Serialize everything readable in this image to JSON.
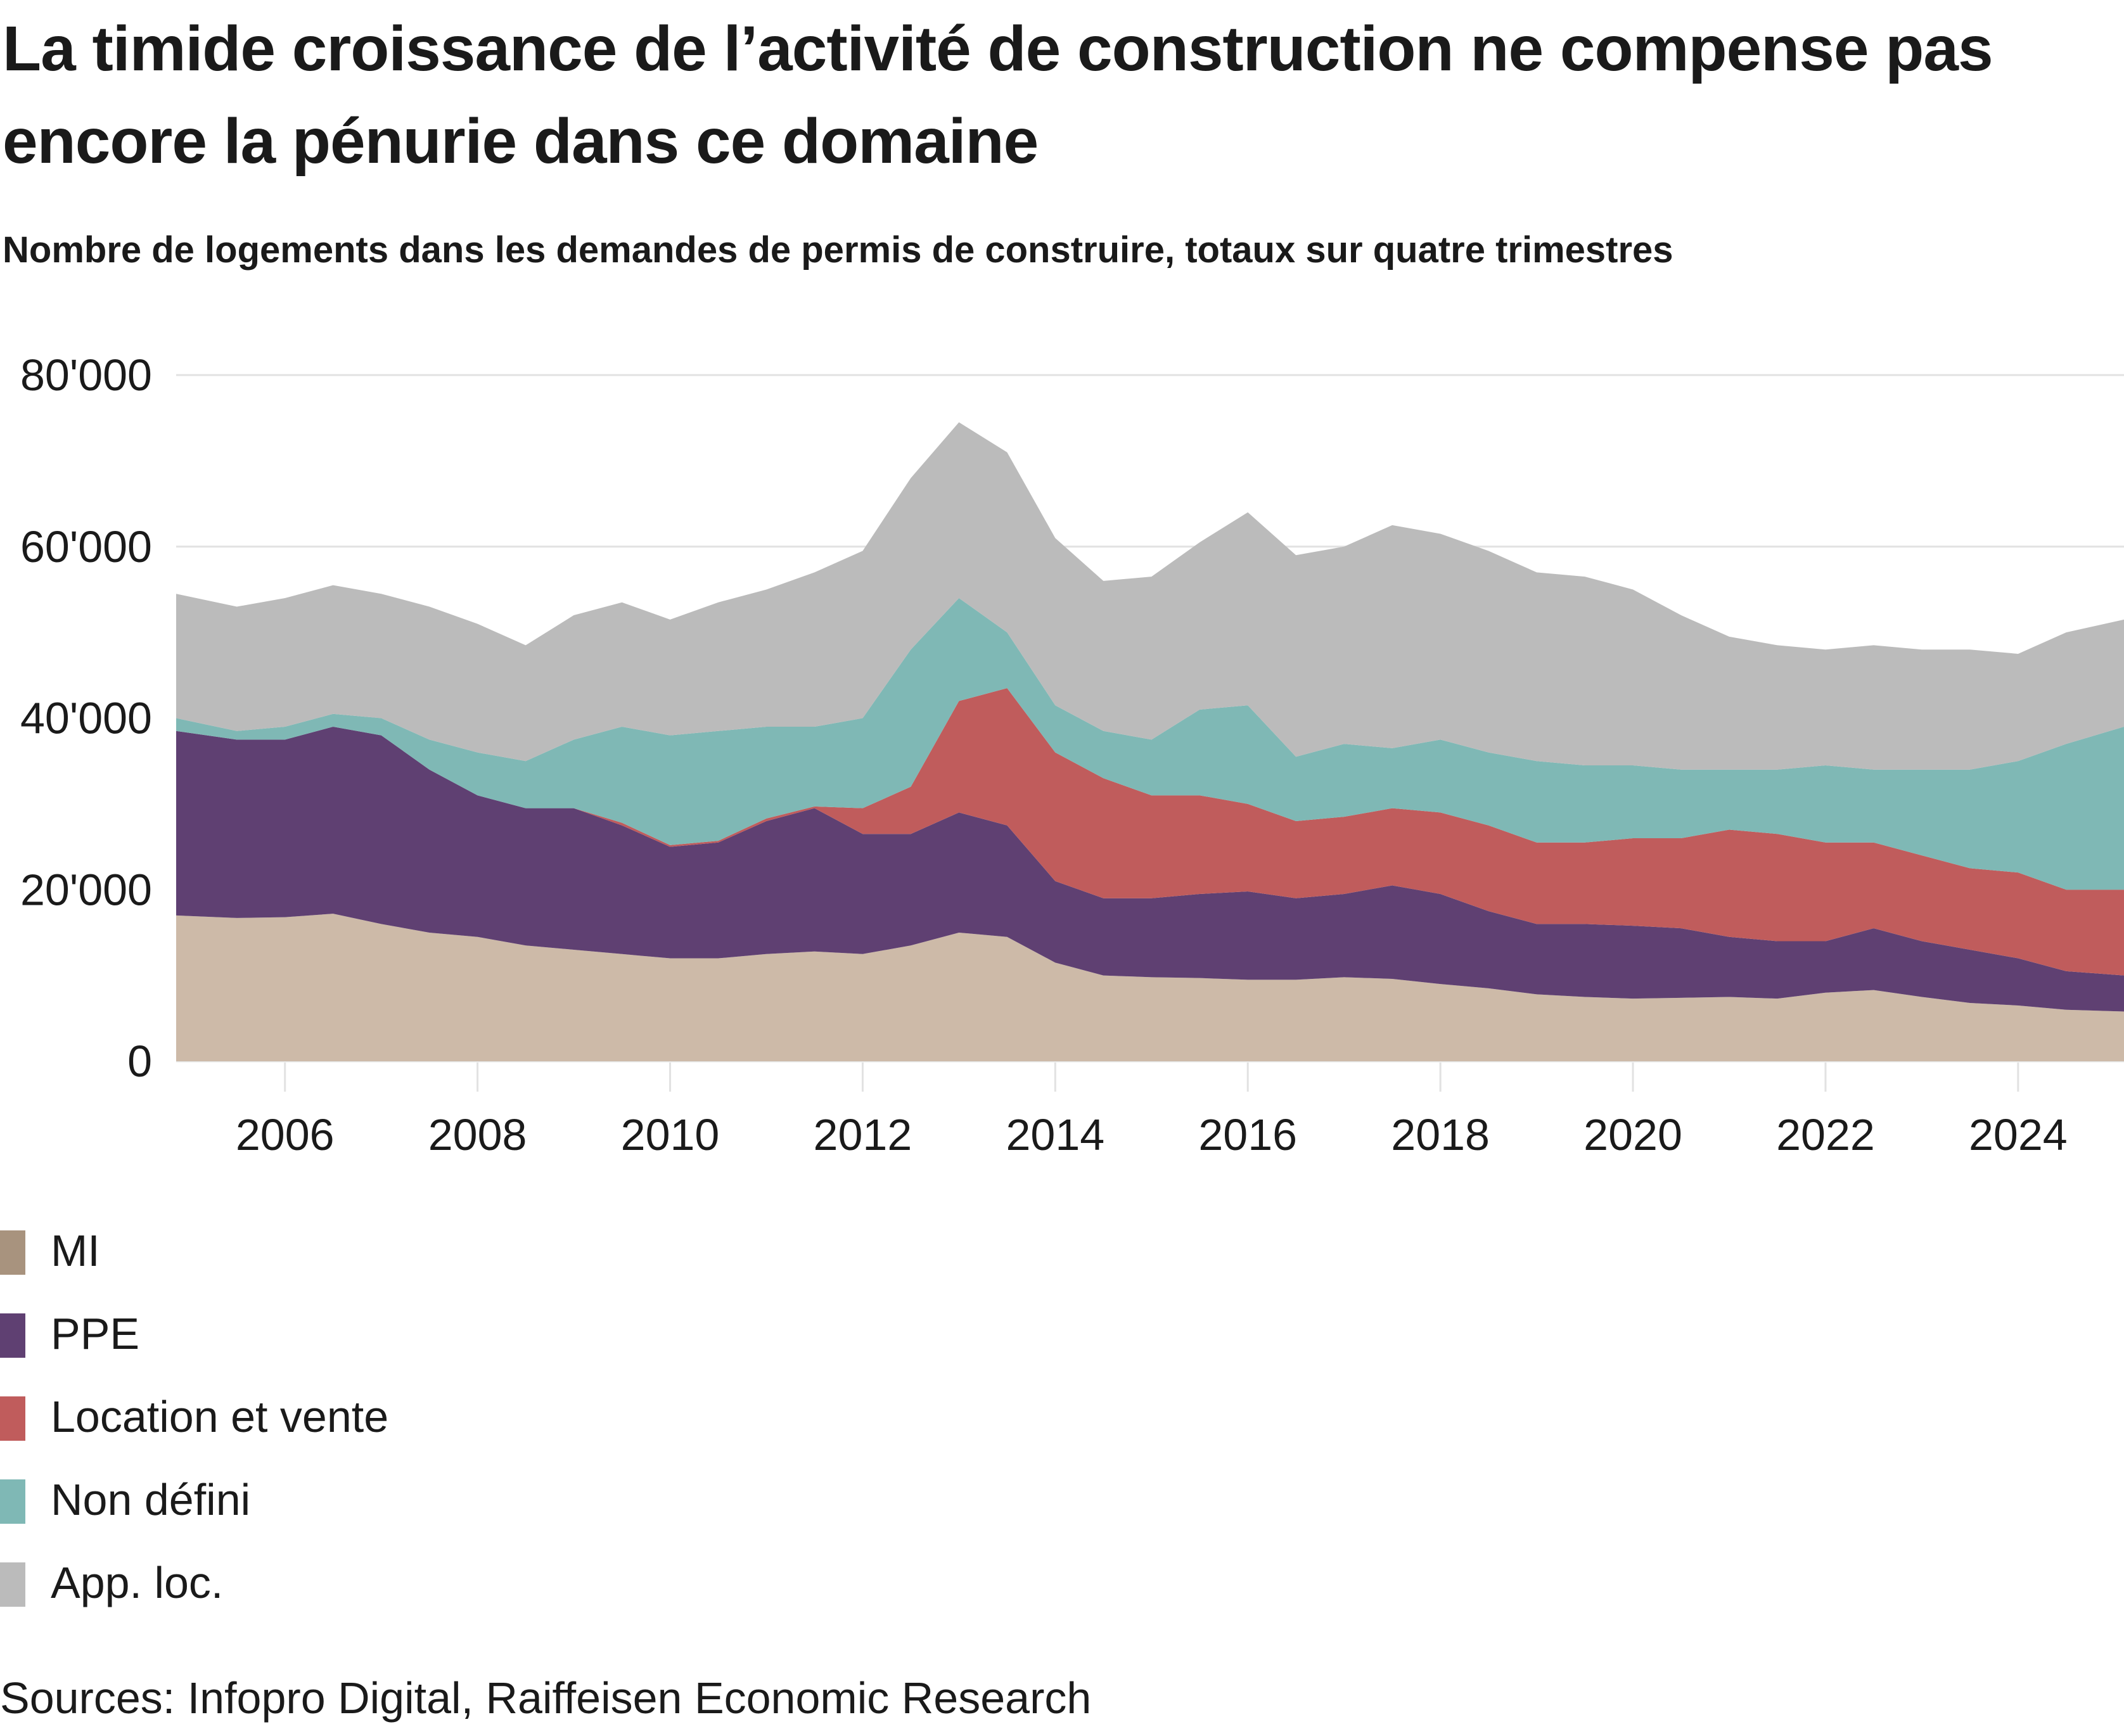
{
  "title": "La timide croissance de l’activité de construction ne compense pas encore la pénurie dans ce domaine",
  "subtitle": "Nombre de logements dans les demandes de permis de construire, totaux sur quatre trimestres",
  "source": "Sources: Infopro Digital, Raiffeisen Economic Research",
  "chart_data": {
    "type": "area",
    "stacked": true,
    "title": "La timide croissance de l’activité de construction ne compense pas encore la pénurie dans ce domaine",
    "subtitle": "Nombre de logements dans les demandes de permis de construire, totaux sur quatre trimestres",
    "xlabel": "",
    "ylabel": "",
    "xlim": [
      2004.87,
      2025.1
    ],
    "ylim": [
      0,
      80000
    ],
    "yticks": [
      0,
      20000,
      40000,
      60000,
      80000
    ],
    "ytick_labels": [
      "0",
      "20'000",
      "40'000",
      "60'000",
      "80'000"
    ],
    "xticks": [
      2006,
      2008,
      2010,
      2012,
      2014,
      2016,
      2018,
      2020,
      2022,
      2024
    ],
    "xtick_labels": [
      "2006",
      "2008",
      "2010",
      "2012",
      "2014",
      "2016",
      "2018",
      "2020",
      "2022",
      "2024"
    ],
    "grid": "horizontal",
    "legend_position": "bottom-left",
    "x": [
      2005.0,
      2005.5,
      2006.0,
      2006.5,
      2007.0,
      2007.5,
      2008.0,
      2008.5,
      2009.0,
      2009.5,
      2010.0,
      2010.5,
      2011.0,
      2011.5,
      2012.0,
      2012.5,
      2013.0,
      2013.5,
      2014.0,
      2014.5,
      2015.0,
      2015.5,
      2016.0,
      2016.5,
      2017.0,
      2017.5,
      2018.0,
      2018.5,
      2019.0,
      2019.5,
      2020.0,
      2020.5,
      2021.0,
      2021.5,
      2022.0,
      2022.5,
      2023.0,
      2023.5,
      2024.0,
      2024.5,
      2025.0
    ],
    "series": [
      {
        "name": "MI",
        "color": "#cdbaa8",
        "legend_color": "#a8937e",
        "values": [
          17000,
          16700,
          16800,
          17200,
          16000,
          15000,
          14500,
          13500,
          13000,
          12500,
          12000,
          12000,
          12500,
          12800,
          12500,
          13500,
          15000,
          14500,
          11500,
          10000,
          9800,
          9700,
          9500,
          9500,
          9800,
          9600,
          9000,
          8500,
          7800,
          7500,
          7300,
          7400,
          7500,
          7300,
          8000,
          8300,
          7500,
          6800,
          6500,
          6000,
          5800
        ]
      },
      {
        "name": "PPE",
        "color": "#5f4072",
        "values": [
          21500,
          20800,
          20700,
          21800,
          22000,
          19000,
          16500,
          16000,
          16500,
          15000,
          13000,
          13500,
          15500,
          16700,
          14000,
          13000,
          14000,
          13000,
          9500,
          9000,
          9200,
          9800,
          10300,
          9500,
          9700,
          10900,
          10500,
          9000,
          8200,
          8500,
          8500,
          8100,
          7000,
          6700,
          6000,
          7200,
          6500,
          6200,
          5500,
          4500,
          4200
        ]
      },
      {
        "name": "Location et vente",
        "color": "#c05c5c",
        "values": [
          0,
          0,
          0,
          0,
          0,
          0,
          0,
          0,
          0,
          300,
          200,
          200,
          300,
          200,
          3000,
          5500,
          13000,
          16000,
          15000,
          14000,
          12000,
          11500,
          10200,
          9000,
          9000,
          9000,
          9500,
          10000,
          9500,
          9500,
          10200,
          10500,
          12500,
          12500,
          11500,
          10000,
          10000,
          9500,
          10000,
          9500,
          10000
        ]
      },
      {
        "name": "Non défini",
        "color": "#7fb8b5",
        "values": [
          1500,
          1000,
          1500,
          1500,
          2000,
          3500,
          5000,
          5500,
          8000,
          11200,
          12800,
          12800,
          10700,
          9300,
          10500,
          16000,
          12000,
          6500,
          5500,
          5500,
          6500,
          10000,
          11500,
          7500,
          8500,
          7000,
          8500,
          8500,
          9500,
          9000,
          8500,
          8000,
          7000,
          7500,
          9000,
          8500,
          10000,
          11500,
          13000,
          17000,
          19000
        ]
      },
      {
        "name": "App. loc.",
        "color": "#bbbbbb",
        "values": [
          14500,
          14500,
          15000,
          15000,
          14500,
          15500,
          15000,
          13500,
          14500,
          14500,
          13500,
          15000,
          16000,
          18000,
          19500,
          20000,
          20500,
          21000,
          19500,
          17500,
          19000,
          19500,
          22500,
          23500,
          23000,
          26000,
          24000,
          23500,
          22000,
          22000,
          20500,
          18000,
          15500,
          14500,
          13500,
          14500,
          14000,
          14000,
          12500,
          13000,
          12500
        ]
      }
    ]
  }
}
